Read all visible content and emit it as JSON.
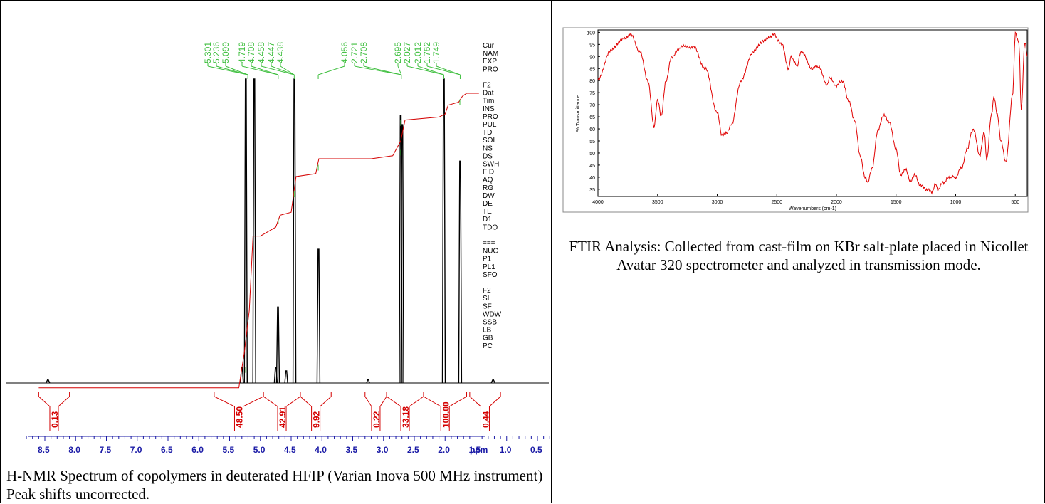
{
  "nmr": {
    "caption": "H-NMR Spectrum of copolymers in deuterated HFIP (Varian Inova 500 MHz instrument) Peak shifts uncorrected.",
    "colors": {
      "spectrum": "#000000",
      "integral": "#d40000",
      "peak_label": "#3fbf3f"
    },
    "peak_labels": [
      {
        "text": "5.301",
        "ppm": 5.28
      },
      {
        "text": "5.236",
        "ppm": 5.23
      },
      {
        "text": "5.099",
        "ppm": 5.1
      },
      {
        "text": "4.719",
        "ppm": 4.72
      },
      {
        "text": "4.708",
        "ppm": 4.7
      },
      {
        "text": "4.458",
        "ppm": 4.46
      },
      {
        "text": "4.447",
        "ppm": 4.45
      },
      {
        "text": "4.438",
        "ppm": 4.44
      },
      {
        "text": "4.056",
        "ppm": 4.06
      },
      {
        "text": "2.721",
        "ppm": 2.72
      },
      {
        "text": "2.708",
        "ppm": 2.71
      },
      {
        "text": "2.695",
        "ppm": 2.7
      },
      {
        "text": "2.027",
        "ppm": 2.03
      },
      {
        "text": "2.012",
        "ppm": 2.01
      },
      {
        "text": "1.762",
        "ppm": 1.76
      },
      {
        "text": "1.749",
        "ppm": 1.75
      }
    ],
    "params_panel": [
      "Cur",
      "NAM",
      "EXP",
      "PRO",
      "",
      "F2",
      "Dat",
      "Tim",
      "INS",
      "PRO",
      "PUL",
      "TD",
      "SOL",
      "NS",
      "DS",
      "SWH",
      "FID",
      "AQ",
      "RG",
      "DW",
      "DE",
      "TE",
      "D1",
      "TDO",
      "",
      "===",
      "NUC",
      "P1",
      "PL1",
      "SFO",
      "",
      "F2",
      "SI",
      "SF",
      "WDW",
      "SSB",
      "LB",
      "GB",
      "PC"
    ],
    "integrals": [
      {
        "label": "0.13",
        "from": 8.6,
        "to": 8.1
      },
      {
        "label": "48.50",
        "from": 5.75,
        "to": 4.95
      },
      {
        "label": "42.91",
        "from": 4.95,
        "to": 4.35
      },
      {
        "label": "9.92",
        "from": 4.35,
        "to": 3.85
      },
      {
        "label": "0.22",
        "from": 3.3,
        "to": 2.95
      },
      {
        "label": "33.18",
        "from": 2.95,
        "to": 2.35
      },
      {
        "label": "100.00",
        "from": 2.35,
        "to": 1.65
      },
      {
        "label": "0.44",
        "from": 1.6,
        "to": 1.1
      }
    ],
    "chart_data": {
      "type": "line",
      "title": "",
      "xlabel": "ppm",
      "ylabel": "",
      "x_reversed": true,
      "xlim": [
        8.8,
        0.0
      ],
      "x_ticks": [
        "8.5",
        "8.0",
        "7.5",
        "7.0",
        "6.5",
        "6.0",
        "5.5",
        "5.0",
        "4.5",
        "4.0",
        "3.5",
        "3.0",
        "2.5",
        "2.0",
        "1.5",
        "1.0",
        "0.5",
        "ppm"
      ],
      "peaks": [
        {
          "ppm": 8.45,
          "height": 0.01,
          "width": 0.03
        },
        {
          "ppm": 5.3,
          "height": 0.05,
          "width": 0.012
        },
        {
          "ppm": 5.236,
          "height": 1.0,
          "width": 0.012
        },
        {
          "ppm": 5.099,
          "height": 1.0,
          "width": 0.012
        },
        {
          "ppm": 4.75,
          "height": 0.05,
          "width": 0.012
        },
        {
          "ppm": 4.714,
          "height": 0.25,
          "width": 0.014
        },
        {
          "ppm": 4.58,
          "height": 0.04,
          "width": 0.015
        },
        {
          "ppm": 4.447,
          "height": 1.0,
          "width": 0.014
        },
        {
          "ppm": 4.056,
          "height": 0.44,
          "width": 0.012
        },
        {
          "ppm": 3.25,
          "height": 0.01,
          "width": 0.02
        },
        {
          "ppm": 2.721,
          "height": 0.88,
          "width": 0.012
        },
        {
          "ppm": 2.695,
          "height": 0.85,
          "width": 0.012
        },
        {
          "ppm": 2.02,
          "height": 1.0,
          "width": 0.016
        },
        {
          "ppm": 1.755,
          "height": 0.73,
          "width": 0.016
        },
        {
          "ppm": 1.22,
          "height": 0.01,
          "width": 0.03
        }
      ],
      "integral_curve": [
        [
          8.6,
          0.01
        ],
        [
          5.35,
          0.01
        ],
        [
          5.26,
          0.13
        ],
        [
          5.18,
          0.27
        ],
        [
          5.12,
          0.52
        ],
        [
          5.0,
          0.52
        ],
        [
          4.75,
          0.55
        ],
        [
          4.68,
          0.59
        ],
        [
          4.5,
          0.6
        ],
        [
          4.42,
          0.72
        ],
        [
          4.1,
          0.73
        ],
        [
          4.05,
          0.78
        ],
        [
          3.2,
          0.78
        ],
        [
          2.85,
          0.79
        ],
        [
          2.72,
          0.84
        ],
        [
          2.65,
          0.91
        ],
        [
          2.1,
          0.92
        ],
        [
          2.0,
          0.93
        ],
        [
          1.95,
          0.96
        ],
        [
          1.78,
          0.97
        ],
        [
          1.72,
          0.99
        ],
        [
          1.65,
          1.0
        ],
        [
          1.45,
          1.0
        ]
      ]
    }
  },
  "ftir": {
    "caption": "FTIR Analysis: Collected from cast-film on KBr salt-plate placed in Nicollet Avatar 320 spectrometer and analyzed in transmission mode.",
    "colors": {
      "line": "#e00000",
      "frame": "#000000"
    },
    "chart_data": {
      "type": "line",
      "title": "",
      "xlabel": "Wavenumbers (cm-1)",
      "ylabel": "% Transmittance",
      "x_reversed": true,
      "xlim": [
        4000,
        400
      ],
      "ylim": [
        32,
        101
      ],
      "x_ticks": [
        4000,
        3500,
        3000,
        2500,
        2000,
        1500,
        1000,
        500
      ],
      "y_ticks": [
        100,
        95,
        90,
        85,
        80,
        75,
        70,
        65,
        60,
        55,
        50,
        45,
        40,
        35
      ],
      "series": [
        {
          "x": [
            4000,
            3900,
            3800,
            3720,
            3650,
            3580,
            3530,
            3500,
            3470,
            3430,
            3380,
            3300,
            3200,
            3100,
            3000,
            2960,
            2920,
            2880,
            2800,
            2700,
            2600,
            2520,
            2490,
            2460,
            2400,
            2380,
            2330,
            2300,
            2200,
            2150,
            2080,
            2060,
            2000,
            1950,
            1900,
            1850,
            1800,
            1760,
            1740,
            1700,
            1650,
            1600,
            1560,
            1500,
            1460,
            1420,
            1380,
            1340,
            1300,
            1250,
            1200,
            1170,
            1150,
            1100,
            1050,
            1000,
            950,
            900,
            870,
            850,
            800,
            760,
            740,
            700,
            680,
            650,
            620,
            580,
            520,
            500,
            470,
            450,
            420,
            400
          ],
          "y": [
            80,
            92,
            97,
            99,
            92,
            80,
            61,
            72,
            65,
            80,
            90,
            94,
            94,
            85,
            67,
            57,
            58,
            62,
            80,
            92,
            97,
            99,
            97,
            95,
            85,
            90,
            86,
            92,
            85,
            86,
            78,
            81,
            78,
            80,
            72,
            64,
            49,
            40,
            38,
            44,
            60,
            66,
            63,
            52,
            41,
            43,
            38,
            41,
            37,
            35,
            34,
            37,
            35,
            38,
            40,
            40,
            44,
            52,
            58,
            60,
            49,
            59,
            47,
            66,
            73,
            66,
            55,
            46,
            75,
            100,
            96,
            68,
            96,
            90
          ]
        }
      ]
    }
  }
}
